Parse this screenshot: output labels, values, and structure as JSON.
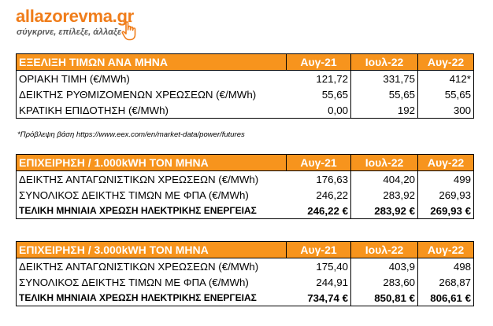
{
  "brand": {
    "name": "allazorevma.gr",
    "tagline": "σύγκρινε, επίλεξε, άλλαξε",
    "color": "#f07d1a",
    "icon": "pointing-hand-icon"
  },
  "header_color": "#f7941d",
  "table1": {
    "title": "ΕΞΕΛΙΞΗ ΤΙΜΩΝ ΑΝΑ ΜΗΝΑ",
    "periods": [
      "Αυγ-21",
      "Ιουλ-22",
      "Αυγ-22"
    ],
    "rows": [
      {
        "label": "ΟΡΙΑΚΗ ΤΙΜΗ (€/MWh)",
        "values": [
          "121,72",
          "331,75",
          "412*"
        ]
      },
      {
        "label": "ΔΕΙΚΤΗΣ ΡΥΘΜΙΖΟΜΕΝΩΝ ΧΡΕΩΣΕΩΝ (€/MWh)",
        "values": [
          "55,65",
          "55,65",
          "55,65"
        ]
      },
      {
        "label": "ΚΡΑΤΙΚΗ ΕΠΙΔΟΤΗΣΗ (€/MWh)",
        "values": [
          "0,00",
          "192",
          "300"
        ]
      }
    ]
  },
  "footnote": "*Πρόβλεψη βάση https://www.eex.com/en/market-data/power/futures",
  "table2": {
    "title": "ΕΠΙΧΕΙΡΗΣΗ / 1.000kWH ΤΟΝ ΜΗΝΑ",
    "periods": [
      "Αυγ-21",
      "Ιουλ-22",
      "Αυγ-22"
    ],
    "rows": [
      {
        "label": "ΔΕΙΚΤΗΣ ΑΝΤΑΓΩΝΙΣΤΙΚΩΝ ΧΡΕΩΣΕΩΝ (€/MWh)",
        "values": [
          "176,63",
          "404,20",
          "499"
        ]
      },
      {
        "label": "ΣΥΝΟΛΙΚΟΣ ΔΕΙΚΤΗΣ ΤΙΜΩΝ ΜΕ ΦΠΑ (€/MWh)",
        "values": [
          "246,22",
          "283,92",
          "269,93"
        ]
      },
      {
        "label": "ΤΕΛΙΚΗ ΜΗΝΙΑΙΑ ΧΡΕΩΣΗ ΗΛΕΚΤΡΙΚΗΣ ΕΝΕΡΓΕΙΑΣ",
        "values": [
          "246,22 €",
          "283,92 €",
          "269,93 €"
        ]
      }
    ]
  },
  "table3": {
    "title": "ΕΠΙΧΕΙΡΗΣΗ / 3.000kWH ΤΟΝ ΜΗΝΑ",
    "periods": [
      "Αυγ-21",
      "Ιουλ-22",
      "Αυγ-22"
    ],
    "rows": [
      {
        "label": "ΔΕΙΚΤΗΣ ΑΝΤΑΓΩΝΙΣΤΙΚΩΝ ΧΡΕΩΣΕΩΝ (€/MWh)",
        "values": [
          "175,40",
          "403,9",
          "498"
        ]
      },
      {
        "label": "ΣΥΝΟΛΙΚΟΣ ΔΕΙΚΤΗΣ ΤΙΜΩΝ ΜΕ ΦΠΑ (€/MWh)",
        "values": [
          "244,91",
          "283,60",
          "268,87"
        ]
      },
      {
        "label": "ΤΕΛΙΚΗ ΜΗΝΙΑΙΑ ΧΡΕΩΣΗ ΗΛΕΚΤΡΙΚΗΣ ΕΝΕΡΓΕΙΑΣ",
        "values": [
          "734,74 €",
          "850,81 €",
          "806,61 €"
        ]
      }
    ]
  }
}
